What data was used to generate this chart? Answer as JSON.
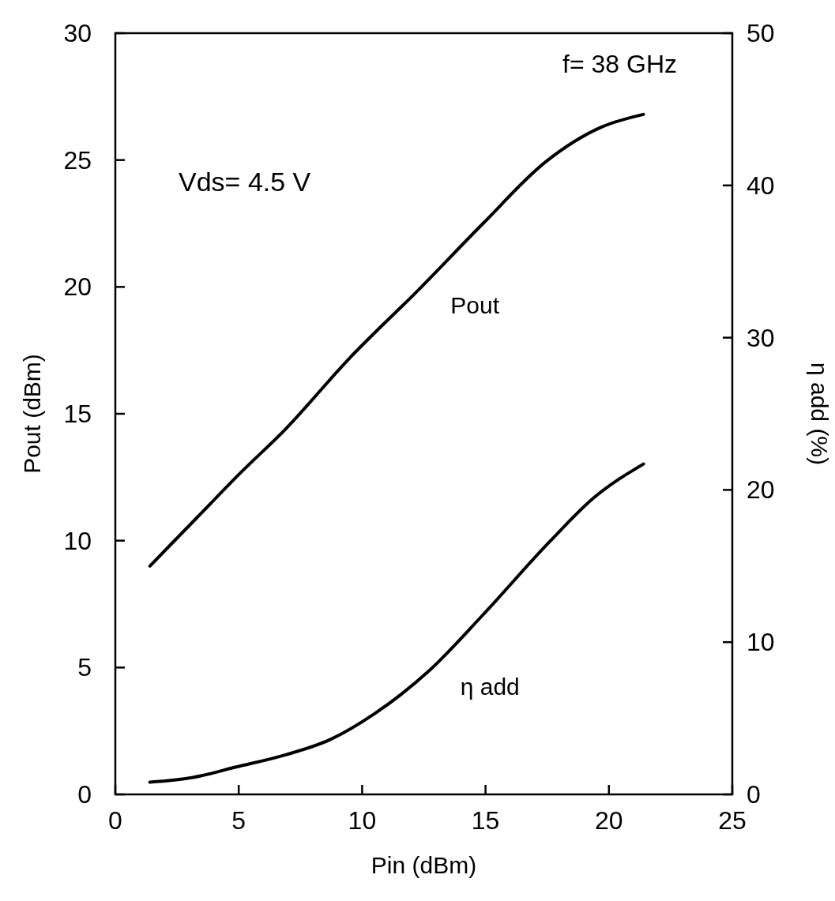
{
  "chart_data": {
    "type": "line",
    "xlabel": "Pin (dBm)",
    "ylabel": "Pout (dBm)",
    "y2label": "η add (%)",
    "xlim": [
      0,
      25
    ],
    "xticks": [
      0,
      5,
      10,
      15,
      20,
      25
    ],
    "ylim": [
      0,
      30
    ],
    "yticks": [
      0,
      5,
      10,
      15,
      20,
      25,
      30
    ],
    "y2lim": [
      0,
      50
    ],
    "y2ticks": [
      0,
      10,
      20,
      30,
      40,
      50
    ],
    "grid": false,
    "marker": "none",
    "line_style": "solid",
    "annotations": [
      "Vds= 4.5 V",
      "f= 38 GHz"
    ],
    "series": [
      {
        "name": "Pout",
        "color": "#000000",
        "x": [
          1.4,
          3.3,
          5.1,
          6.9,
          9.4,
          12.3,
          14.9,
          17.4,
          19.7,
          21.4
        ],
        "values": [
          9.0,
          10.9,
          12.7,
          14.4,
          17.1,
          19.9,
          22.5,
          24.9,
          26.3,
          26.8
        ]
      },
      {
        "name": "η add",
        "color": "#000000",
        "axis": "y2",
        "x": [
          1.4,
          3.1,
          4.9,
          6.9,
          8.7,
          10.5,
          12.7,
          14.9,
          17.6,
          19.4,
          21.4
        ],
        "values": [
          0.8,
          1.1,
          1.8,
          2.6,
          3.6,
          5.3,
          8.1,
          11.8,
          16.6,
          19.5,
          21.7
        ]
      }
    ]
  }
}
